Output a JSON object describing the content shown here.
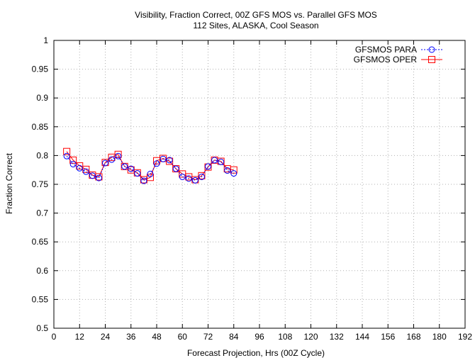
{
  "chart_data": {
    "type": "line",
    "title": "Visibility, Fraction Correct, 00Z GFS MOS vs. Parallel GFS MOS",
    "subtitle": "112 Sites, ALASKA, Cool Season",
    "xlabel": "Forecast Projection, Hrs (00Z Cycle)",
    "ylabel": "Fraction Correct",
    "xlim": [
      0,
      192
    ],
    "ylim": [
      0.5,
      1.0
    ],
    "x_ticks": [
      0,
      12,
      24,
      36,
      48,
      60,
      72,
      84,
      96,
      108,
      120,
      132,
      144,
      156,
      168,
      180,
      192
    ],
    "y_ticks": [
      0.5,
      0.55,
      0.6,
      0.65,
      0.7,
      0.75,
      0.8,
      0.85,
      0.9,
      0.95,
      1
    ],
    "grid": true,
    "legend_position": "top-right",
    "x": [
      6,
      9,
      12,
      15,
      18,
      21,
      24,
      27,
      30,
      33,
      36,
      39,
      42,
      45,
      48,
      51,
      54,
      57,
      60,
      63,
      66,
      69,
      72,
      75,
      78,
      81,
      84
    ],
    "series": [
      {
        "name": "GFSMOS PARA",
        "color": "#0000ff",
        "marker": "circle",
        "line_style": "dotted",
        "values": [
          0.799,
          0.785,
          0.778,
          0.772,
          0.765,
          0.761,
          0.787,
          0.793,
          0.799,
          0.781,
          0.777,
          0.769,
          0.756,
          0.768,
          0.786,
          0.794,
          0.792,
          0.777,
          0.763,
          0.76,
          0.757,
          0.763,
          0.781,
          0.792,
          0.789,
          0.774,
          0.769
        ]
      },
      {
        "name": "GFSMOS OPER",
        "color": "#ff0000",
        "marker": "square",
        "line_style": "solid",
        "values": [
          0.807,
          0.792,
          0.782,
          0.776,
          0.766,
          0.763,
          0.788,
          0.797,
          0.802,
          0.781,
          0.775,
          0.77,
          0.758,
          0.762,
          0.791,
          0.795,
          0.79,
          0.777,
          0.768,
          0.763,
          0.758,
          0.765,
          0.78,
          0.792,
          0.79,
          0.777,
          0.775
        ]
      }
    ]
  }
}
